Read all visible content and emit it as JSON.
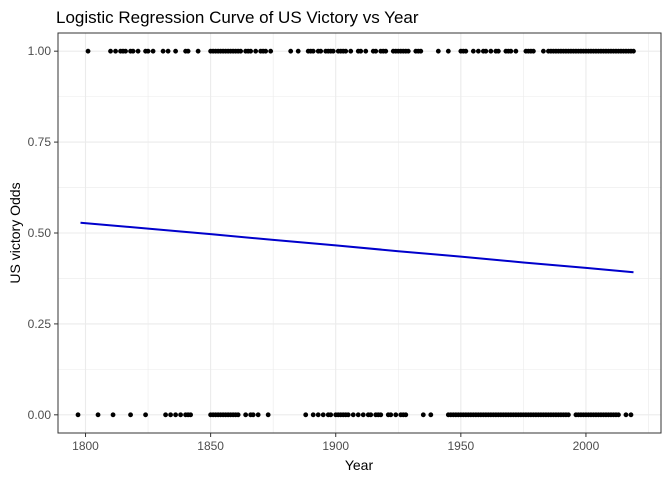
{
  "chart_data": {
    "type": "scatter",
    "title": "Logistic Regression Curve of US Victory vs Year",
    "xlabel": "Year",
    "ylabel": "US victory Odds",
    "xlim": [
      1789,
      2030
    ],
    "ylim": [
      -0.05,
      1.05
    ],
    "x_ticks": [
      1800,
      1850,
      1900,
      1950,
      2000
    ],
    "y_ticks": [
      0.0,
      0.25,
      0.5,
      0.75,
      1.0
    ],
    "x_tick_labels": [
      "1800",
      "1850",
      "1900",
      "1950",
      "2000"
    ],
    "y_tick_labels": [
      "0.00",
      "0.25",
      "0.50",
      "0.75",
      "1.00"
    ],
    "grid": true,
    "legend": "none",
    "colors": {
      "points": "#000000",
      "curve": "#0000cc",
      "grid": "#ebebeb",
      "panel_border": "#333333"
    },
    "series": [
      {
        "kind": "points",
        "outcome": 1,
        "x": [
          1801,
          1810,
          1812,
          1814,
          1815,
          1816,
          1818,
          1819,
          1821,
          1824,
          1825,
          1827,
          1831,
          1833,
          1836,
          1840,
          1841,
          1845,
          1850,
          1851,
          1852,
          1853,
          1854,
          1855,
          1856,
          1857,
          1858,
          1859,
          1860,
          1861,
          1862,
          1864,
          1865,
          1866,
          1868,
          1870,
          1871,
          1872,
          1874,
          1882,
          1885,
          1889,
          1890,
          1891,
          1893,
          1894,
          1896,
          1897,
          1898,
          1899,
          1901,
          1902,
          1903,
          1904,
          1906,
          1909,
          1910,
          1912,
          1915,
          1916,
          1918,
          1919,
          1920,
          1923,
          1924,
          1925,
          1926,
          1927,
          1928,
          1929,
          1932,
          1933,
          1934,
          1941,
          1945,
          1950,
          1951,
          1952,
          1955,
          1957,
          1959,
          1960,
          1962,
          1964,
          1965,
          1968,
          1969,
          1970,
          1972,
          1976,
          1977,
          1978,
          1979,
          1983,
          1985,
          1986,
          1987,
          1988,
          1989,
          1990,
          1991,
          1992,
          1993,
          1994,
          1995,
          1996,
          1997,
          1998,
          1999,
          2000,
          2001,
          2002,
          2003,
          2004,
          2005,
          2006,
          2007,
          2008,
          2009,
          2010,
          2011,
          2012,
          2013,
          2014,
          2015,
          2016,
          2017,
          2018,
          2019
        ]
      },
      {
        "kind": "points",
        "outcome": 0,
        "x": [
          1797,
          1805,
          1811,
          1818,
          1824,
          1832,
          1834,
          1836,
          1838,
          1840,
          1841,
          1842,
          1850,
          1851,
          1852,
          1853,
          1854,
          1855,
          1856,
          1857,
          1858,
          1859,
          1860,
          1861,
          1864,
          1866,
          1867,
          1869,
          1873,
          1888,
          1891,
          1893,
          1895,
          1897,
          1898,
          1900,
          1901,
          1902,
          1903,
          1904,
          1905,
          1907,
          1909,
          1911,
          1913,
          1914,
          1916,
          1917,
          1918,
          1921,
          1922,
          1924,
          1926,
          1927,
          1928,
          1935,
          1938,
          1945,
          1946,
          1947,
          1948,
          1949,
          1950,
          1951,
          1952,
          1953,
          1954,
          1955,
          1956,
          1957,
          1958,
          1959,
          1960,
          1961,
          1962,
          1963,
          1964,
          1965,
          1966,
          1967,
          1968,
          1969,
          1970,
          1971,
          1972,
          1973,
          1974,
          1975,
          1976,
          1977,
          1978,
          1979,
          1980,
          1981,
          1982,
          1983,
          1984,
          1985,
          1986,
          1987,
          1988,
          1989,
          1990,
          1991,
          1992,
          1993,
          1996,
          1997,
          1998,
          1999,
          2000,
          2001,
          2002,
          2003,
          2004,
          2005,
          2006,
          2007,
          2008,
          2009,
          2010,
          2011,
          2012,
          2013,
          2016,
          2018
        ]
      },
      {
        "kind": "curve",
        "x": [
          1798,
          1825,
          1850,
          1875,
          1900,
          1925,
          1950,
          1975,
          2000,
          2019
        ],
        "y": [
          0.528,
          0.512,
          0.497,
          0.481,
          0.466,
          0.45,
          0.435,
          0.419,
          0.404,
          0.392
        ]
      }
    ]
  }
}
